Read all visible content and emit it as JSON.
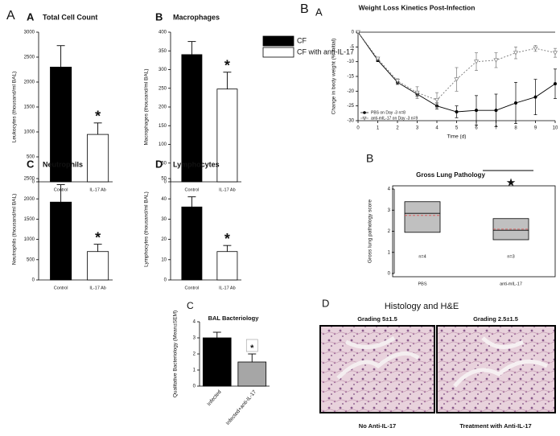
{
  "panel_letters": [
    "A",
    "B"
  ],
  "legend": {
    "series": [
      {
        "name": "CF",
        "color": "#000000"
      },
      {
        "name": "CF with anti-IL-17",
        "color": "#ffffff"
      }
    ]
  },
  "chart_data": [
    {
      "type": "bar",
      "label": "A",
      "title": "Total Cell Count",
      "ylabel": "Leukocytes (thousand/ml BAL)",
      "categories": [
        "Control",
        "IL-17 Ab"
      ],
      "values": [
        2300,
        950
      ],
      "errors": [
        430,
        230
      ],
      "ylim": [
        0,
        3000
      ],
      "yticks": [
        0,
        500,
        1000,
        1500,
        2000,
        2500,
        3000
      ],
      "annotations": [
        "*"
      ]
    },
    {
      "type": "bar",
      "label": "B",
      "title": "Macrophages",
      "ylabel": "Macrophages (thousand/ml BAL)",
      "categories": [
        "Control",
        "IL-17 Ab"
      ],
      "values": [
        340,
        248
      ],
      "errors": [
        35,
        45
      ],
      "ylim": [
        0,
        400
      ],
      "yticks": [
        0,
        50,
        100,
        150,
        200,
        250,
        300,
        350,
        400
      ],
      "annotations": [
        "*"
      ]
    },
    {
      "type": "bar",
      "label": "C",
      "title": "Neutrophils",
      "ylabel": "Neutrophils (thousand/ml BAL)",
      "categories": [
        "Control",
        "IL-17 Ab"
      ],
      "values": [
        1920,
        700
      ],
      "errors": [
        430,
        180
      ],
      "ylim": [
        0,
        2500
      ],
      "yticks": [
        0,
        500,
        1000,
        1500,
        2000,
        2500
      ],
      "annotations": [
        "*"
      ]
    },
    {
      "type": "bar",
      "label": "D",
      "title": "Lymphocytes",
      "ylabel": "Lymphocytes (thousand/ml BAL)",
      "categories": [
        "Control",
        "IL-17 Ab"
      ],
      "values": [
        36,
        14
      ],
      "errors": [
        5,
        3
      ],
      "ylim": [
        0,
        50
      ],
      "yticks": [
        0,
        10,
        20,
        30,
        40,
        50
      ],
      "annotations": [
        "*"
      ]
    },
    {
      "type": "line",
      "label": "A",
      "title": "Weight Loss Kinetics Post-Infection",
      "xlabel": "Time (d)",
      "ylabel": "Change in body weight (% initial)",
      "x": [
        0,
        1,
        2,
        3,
        4,
        5,
        6,
        7,
        8,
        9,
        10
      ],
      "series": [
        {
          "name": "PBS on Day -3 n=8",
          "color": "#000000",
          "values": [
            0,
            -9.5,
            -17,
            -21,
            -25,
            -27,
            -26.5,
            -26.5,
            -24,
            -22,
            -17.5
          ],
          "errors": [
            0,
            0.5,
            0.7,
            0.8,
            1,
            2,
            5,
            5.5,
            7,
            6,
            5
          ]
        },
        {
          "name": "anti-mIL-17 on Day -3 n=9",
          "color": "#777777",
          "values": [
            0,
            -9,
            -16.5,
            -20.5,
            -23,
            -16,
            -10,
            -9.5,
            -7,
            -5.5,
            -7
          ],
          "errors": [
            0,
            0.5,
            0.7,
            2,
            2.5,
            4,
            3,
            2.5,
            2,
            1,
            1.5
          ]
        }
      ],
      "xlim": [
        0,
        10
      ],
      "xticks": [
        0,
        1,
        2,
        3,
        4,
        5,
        6,
        7,
        8,
        9,
        10
      ],
      "ylim": [
        -30,
        0
      ],
      "yticks": [
        -30,
        -25,
        -20,
        -15,
        -10,
        -5,
        0
      ]
    },
    {
      "type": "box",
      "label": "B",
      "title": "Gross Lung Pathology",
      "ylabel": "Gross lung pathology score",
      "categories": [
        "PBS",
        "anti-mIL-17"
      ],
      "n": [
        "n=4",
        "n=3"
      ],
      "color": "#c0c0c0",
      "mean_color": "#e05050",
      "boxes": [
        {
          "q1": 1.95,
          "median": 2.85,
          "q3": 3.4,
          "mean": 2.75
        },
        {
          "q1": 1.6,
          "median": 2.05,
          "q3": 2.6,
          "mean": 2.1
        }
      ],
      "ylim": [
        0,
        4
      ],
      "yticks": [
        0,
        1,
        2,
        3,
        4
      ],
      "annotations": [
        "★"
      ]
    },
    {
      "type": "bar",
      "label": "C",
      "title": "BAL Bacteriology",
      "ylabel": "Qualitative Bacteriology (Mean±SEM)",
      "categories": [
        "Infected",
        "Infected+anti-IL-17"
      ],
      "values": [
        3.0,
        1.5
      ],
      "errors": [
        0.35,
        0.5
      ],
      "colors": [
        "#000000",
        "#a6a6a6"
      ],
      "ylim": [
        0,
        4
      ],
      "yticks": [
        0,
        1,
        2,
        3,
        4
      ],
      "annotations": [
        "*"
      ]
    }
  ],
  "histology": {
    "label": "D",
    "title": "Histology and H&E",
    "panels": [
      {
        "grading": "Grading 5±1.5",
        "caption": "No Anti-IL-17"
      },
      {
        "grading": "Grading 2.5±1.5",
        "caption": "Treatment  with Anti-IL-17"
      }
    ]
  }
}
